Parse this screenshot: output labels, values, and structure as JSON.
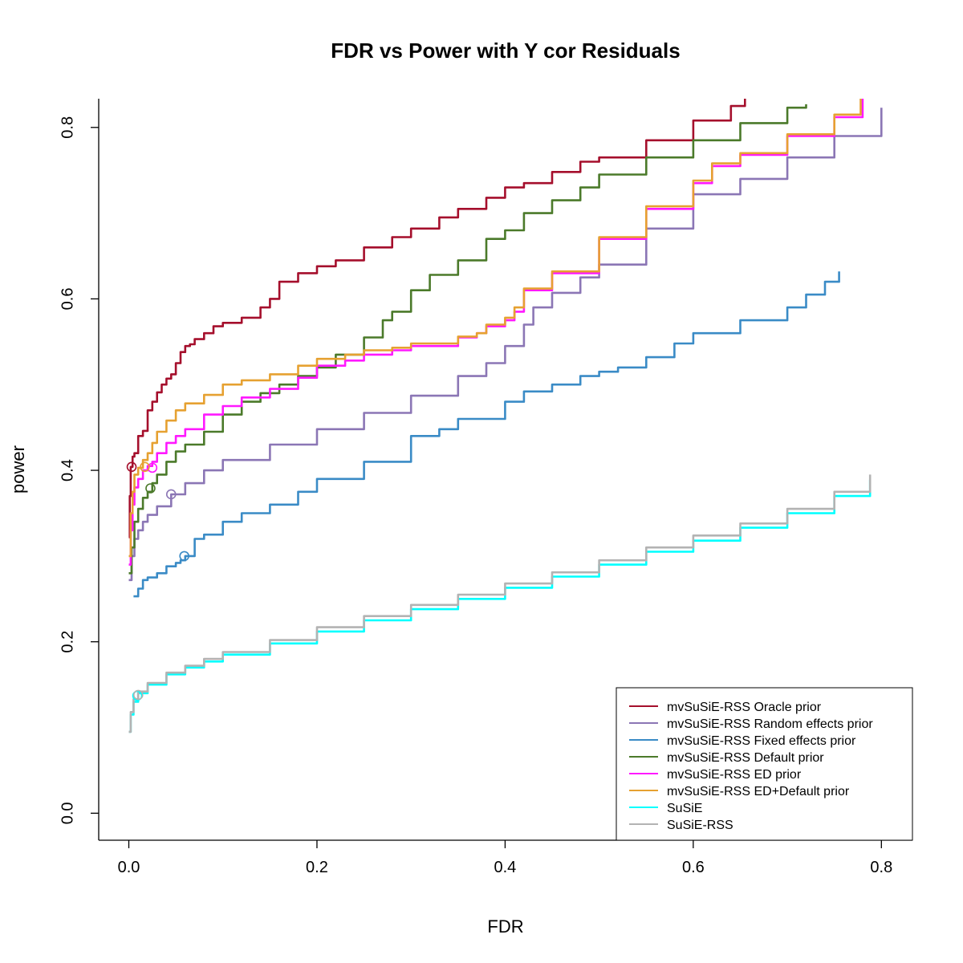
{
  "chart_data": {
    "type": "line",
    "title": "FDR vs Power with Y cor Residuals",
    "xlabel": "FDR",
    "ylabel": "power",
    "xlim": [
      -0.032,
      0.833
    ],
    "ylim": [
      -0.0315,
      0.8335
    ],
    "xticks": [
      0.0,
      0.2,
      0.4,
      0.6,
      0.8
    ],
    "xtick_labels": [
      "0.0",
      "0.2",
      "0.4",
      "0.6",
      "0.8"
    ],
    "yticks": [
      0.0,
      0.2,
      0.4,
      0.6,
      0.8
    ],
    "ytick_labels": [
      "0.0",
      "0.2",
      "0.4",
      "0.6",
      "0.8"
    ],
    "grid": false,
    "legend_position": "bottom-right",
    "series": [
      {
        "name": "mvSuSiE-RSS Oracle prior",
        "color": "#A50F2C",
        "x": [
          0.0,
          0.001,
          0.002,
          0.004,
          0.006,
          0.01,
          0.015,
          0.02,
          0.025,
          0.03,
          0.035,
          0.04,
          0.045,
          0.05,
          0.055,
          0.06,
          0.065,
          0.07,
          0.08,
          0.09,
          0.1,
          0.12,
          0.14,
          0.15,
          0.16,
          0.18,
          0.2,
          0.22,
          0.25,
          0.28,
          0.3,
          0.33,
          0.35,
          0.38,
          0.4,
          0.42,
          0.45,
          0.48,
          0.5,
          0.55,
          0.6,
          0.64,
          0.655
        ],
        "y": [
          0.322,
          0.37,
          0.404,
          0.416,
          0.42,
          0.44,
          0.446,
          0.47,
          0.48,
          0.491,
          0.5,
          0.507,
          0.512,
          0.525,
          0.538,
          0.545,
          0.547,
          0.553,
          0.56,
          0.568,
          0.572,
          0.578,
          0.59,
          0.6,
          0.62,
          0.63,
          0.638,
          0.645,
          0.66,
          0.672,
          0.682,
          0.695,
          0.705,
          0.718,
          0.73,
          0.735,
          0.748,
          0.76,
          0.765,
          0.785,
          0.808,
          0.825,
          0.834
        ]
      },
      {
        "name": "mvSuSiE-RSS Random effects prior",
        "color": "#8B76B5",
        "x": [
          0.0,
          0.003,
          0.006,
          0.01,
          0.015,
          0.02,
          0.03,
          0.045,
          0.06,
          0.08,
          0.1,
          0.15,
          0.2,
          0.25,
          0.3,
          0.35,
          0.38,
          0.4,
          0.42,
          0.43,
          0.45,
          0.48,
          0.5,
          0.55,
          0.6,
          0.65,
          0.7,
          0.75,
          0.8
        ],
        "y": [
          0.272,
          0.3,
          0.32,
          0.33,
          0.34,
          0.348,
          0.358,
          0.372,
          0.385,
          0.4,
          0.412,
          0.43,
          0.448,
          0.467,
          0.487,
          0.51,
          0.525,
          0.545,
          0.57,
          0.59,
          0.607,
          0.625,
          0.64,
          0.682,
          0.722,
          0.74,
          0.765,
          0.79,
          0.823
        ]
      },
      {
        "name": "mvSuSiE-RSS Fixed effects prior",
        "color": "#3A8BC6",
        "x": [
          0.005,
          0.01,
          0.015,
          0.02,
          0.03,
          0.04,
          0.05,
          0.055,
          0.06,
          0.07,
          0.08,
          0.1,
          0.12,
          0.15,
          0.18,
          0.2,
          0.25,
          0.3,
          0.33,
          0.35,
          0.4,
          0.42,
          0.45,
          0.48,
          0.5,
          0.52,
          0.55,
          0.58,
          0.6,
          0.65,
          0.7,
          0.72,
          0.74,
          0.755
        ],
        "y": [
          0.253,
          0.262,
          0.272,
          0.275,
          0.28,
          0.288,
          0.292,
          0.295,
          0.3,
          0.32,
          0.325,
          0.34,
          0.35,
          0.36,
          0.375,
          0.39,
          0.41,
          0.44,
          0.448,
          0.46,
          0.48,
          0.492,
          0.5,
          0.51,
          0.515,
          0.52,
          0.532,
          0.548,
          0.56,
          0.575,
          0.59,
          0.605,
          0.62,
          0.632
        ]
      },
      {
        "name": "mvSuSiE-RSS Default prior",
        "color": "#4B7A2A",
        "x": [
          0.0,
          0.003,
          0.006,
          0.01,
          0.015,
          0.02,
          0.025,
          0.03,
          0.04,
          0.05,
          0.06,
          0.08,
          0.1,
          0.12,
          0.14,
          0.16,
          0.18,
          0.2,
          0.22,
          0.25,
          0.27,
          0.28,
          0.3,
          0.32,
          0.35,
          0.38,
          0.4,
          0.42,
          0.45,
          0.48,
          0.5,
          0.55,
          0.6,
          0.65,
          0.7,
          0.72
        ],
        "y": [
          0.28,
          0.31,
          0.34,
          0.355,
          0.368,
          0.375,
          0.385,
          0.395,
          0.41,
          0.422,
          0.43,
          0.445,
          0.465,
          0.48,
          0.49,
          0.5,
          0.51,
          0.52,
          0.535,
          0.555,
          0.575,
          0.585,
          0.61,
          0.628,
          0.645,
          0.67,
          0.68,
          0.7,
          0.715,
          0.73,
          0.745,
          0.765,
          0.785,
          0.805,
          0.823,
          0.827
        ]
      },
      {
        "name": "mvSuSiE-RSS ED prior",
        "color": "#FF19FF",
        "x": [
          0.0,
          0.002,
          0.004,
          0.006,
          0.01,
          0.015,
          0.02,
          0.025,
          0.03,
          0.04,
          0.05,
          0.06,
          0.08,
          0.1,
          0.12,
          0.15,
          0.18,
          0.2,
          0.23,
          0.25,
          0.28,
          0.3,
          0.35,
          0.37,
          0.38,
          0.4,
          0.41,
          0.42,
          0.45,
          0.5,
          0.55,
          0.6,
          0.62,
          0.65,
          0.7,
          0.75,
          0.78
        ],
        "y": [
          0.29,
          0.33,
          0.36,
          0.38,
          0.39,
          0.4,
          0.405,
          0.41,
          0.42,
          0.432,
          0.44,
          0.448,
          0.465,
          0.475,
          0.485,
          0.495,
          0.508,
          0.522,
          0.528,
          0.535,
          0.54,
          0.545,
          0.555,
          0.56,
          0.568,
          0.575,
          0.585,
          0.61,
          0.63,
          0.67,
          0.705,
          0.735,
          0.755,
          0.768,
          0.79,
          0.812,
          0.835
        ]
      },
      {
        "name": "mvSuSiE-RSS ED+Default prior",
        "color": "#E6A131",
        "x": [
          0.0,
          0.002,
          0.004,
          0.006,
          0.01,
          0.015,
          0.02,
          0.025,
          0.03,
          0.04,
          0.05,
          0.06,
          0.08,
          0.1,
          0.12,
          0.15,
          0.18,
          0.2,
          0.23,
          0.25,
          0.28,
          0.3,
          0.35,
          0.37,
          0.38,
          0.4,
          0.41,
          0.42,
          0.45,
          0.5,
          0.55,
          0.6,
          0.62,
          0.65,
          0.7,
          0.75,
          0.778
        ],
        "y": [
          0.3,
          0.35,
          0.375,
          0.395,
          0.403,
          0.412,
          0.42,
          0.432,
          0.445,
          0.458,
          0.47,
          0.478,
          0.488,
          0.5,
          0.505,
          0.512,
          0.522,
          0.53,
          0.535,
          0.54,
          0.543,
          0.548,
          0.556,
          0.56,
          0.57,
          0.578,
          0.59,
          0.612,
          0.632,
          0.672,
          0.708,
          0.738,
          0.758,
          0.77,
          0.792,
          0.815,
          0.835
        ]
      },
      {
        "name": "SuSiE",
        "color": "#00FFFF",
        "x": [
          0.0,
          0.002,
          0.005,
          0.01,
          0.02,
          0.04,
          0.06,
          0.08,
          0.1,
          0.15,
          0.2,
          0.25,
          0.3,
          0.35,
          0.4,
          0.45,
          0.5,
          0.55,
          0.6,
          0.65,
          0.7,
          0.75,
          0.788
        ],
        "y": [
          0.095,
          0.115,
          0.13,
          0.14,
          0.15,
          0.162,
          0.17,
          0.177,
          0.185,
          0.198,
          0.212,
          0.225,
          0.238,
          0.25,
          0.263,
          0.276,
          0.29,
          0.305,
          0.318,
          0.333,
          0.35,
          0.37,
          0.389
        ]
      },
      {
        "name": "SuSiE-RSS",
        "color": "#B3B3B3",
        "x": [
          0.0,
          0.002,
          0.005,
          0.01,
          0.02,
          0.04,
          0.06,
          0.08,
          0.1,
          0.15,
          0.2,
          0.25,
          0.3,
          0.35,
          0.4,
          0.45,
          0.5,
          0.55,
          0.6,
          0.65,
          0.7,
          0.75,
          0.788
        ],
        "y": [
          0.095,
          0.118,
          0.133,
          0.142,
          0.152,
          0.164,
          0.172,
          0.18,
          0.188,
          0.202,
          0.217,
          0.23,
          0.243,
          0.255,
          0.268,
          0.281,
          0.295,
          0.31,
          0.324,
          0.338,
          0.355,
          0.375,
          0.395
        ]
      }
    ],
    "circle_markers": [
      {
        "series": "mvSuSiE-RSS Oracle prior",
        "x": 0.003,
        "y": 0.404
      },
      {
        "series": "mvSuSiE-RSS Random effects prior",
        "x": 0.045,
        "y": 0.372
      },
      {
        "series": "mvSuSiE-RSS Fixed effects prior",
        "x": 0.059,
        "y": 0.3
      },
      {
        "series": "mvSuSiE-RSS Default prior",
        "x": 0.023,
        "y": 0.379
      },
      {
        "series": "mvSuSiE-RSS ED prior",
        "x": 0.025,
        "y": 0.403
      },
      {
        "series": "mvSuSiE-RSS ED+Default prior",
        "x": 0.017,
        "y": 0.404
      },
      {
        "series": "SuSiE",
        "x": 0.009,
        "y": 0.137
      },
      {
        "series": "SuSiE-RSS",
        "x": 0.01,
        "y": 0.138
      }
    ]
  }
}
